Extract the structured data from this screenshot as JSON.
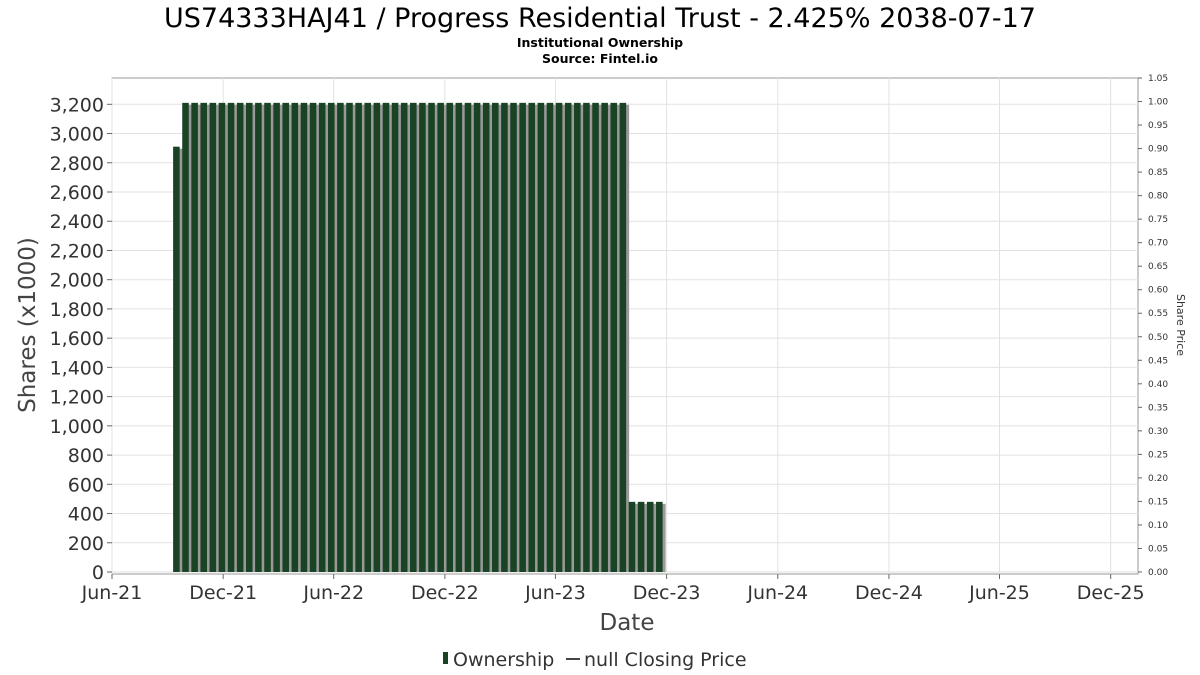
{
  "chart_data": {
    "type": "bar",
    "title": "US74333HAJ41 / Progress Residential Trust - 2.425% 2038-07-17",
    "subtitle": "Institutional Ownership",
    "source": "Source: Fintel.io",
    "xlabel": "Date",
    "ylabel": "Shares (x1000)",
    "y2label": "Share Price",
    "ylim": [
      0,
      3380
    ],
    "y2lim": [
      0,
      1.05
    ],
    "xlim": [
      "2021-06-01",
      "2026-01-15"
    ],
    "yticks": [
      "0",
      "200",
      "400",
      "600",
      "800",
      "1,000",
      "1,200",
      "1,400",
      "1,600",
      "1,800",
      "2,000",
      "2,200",
      "2,400",
      "2,600",
      "2,800",
      "3,000",
      "3,200"
    ],
    "y2ticks": [
      "0.00",
      "0.05",
      "0.10",
      "0.15",
      "0.20",
      "0.25",
      "0.30",
      "0.35",
      "0.40",
      "0.45",
      "0.50",
      "0.55",
      "0.60",
      "0.65",
      "0.70",
      "0.75",
      "0.80",
      "0.85",
      "0.90",
      "0.95",
      "1.00",
      "1.05"
    ],
    "xticks": [
      {
        "label": "Jun-21",
        "date": "2021-06-01"
      },
      {
        "label": "Dec-21",
        "date": "2021-12-01"
      },
      {
        "label": "Jun-22",
        "date": "2022-06-01"
      },
      {
        "label": "Dec-22",
        "date": "2022-12-01"
      },
      {
        "label": "Jun-23",
        "date": "2023-06-01"
      },
      {
        "label": "Dec-23",
        "date": "2023-12-01"
      },
      {
        "label": "Jun-24",
        "date": "2024-06-01"
      },
      {
        "label": "Dec-24",
        "date": "2024-12-01"
      },
      {
        "label": "Jun-25",
        "date": "2025-06-01"
      },
      {
        "label": "Dec-25",
        "date": "2025-12-01"
      }
    ],
    "grid": true,
    "legend_position": "bottom-center",
    "series": [
      {
        "name": "Ownership",
        "color": "#1a4325",
        "shadow_color": "#999999",
        "first_date": "2021-09-15",
        "step_days": 15,
        "values": [
          2910,
          3210,
          3210,
          3210,
          3210,
          3210,
          3210,
          3210,
          3210,
          3210,
          3210,
          3210,
          3210,
          3210,
          3210,
          3210,
          3210,
          3210,
          3210,
          3210,
          3210,
          3210,
          3210,
          3210,
          3210,
          3210,
          3210,
          3210,
          3210,
          3210,
          3210,
          3210,
          3210,
          3210,
          3210,
          3210,
          3210,
          3210,
          3210,
          3210,
          3210,
          3210,
          3210,
          3210,
          3210,
          3210,
          3210,
          3210,
          3210,
          3210,
          480,
          480,
          480,
          480
        ]
      },
      {
        "name": "null Closing Price",
        "color": "#444444",
        "values": []
      }
    ]
  }
}
